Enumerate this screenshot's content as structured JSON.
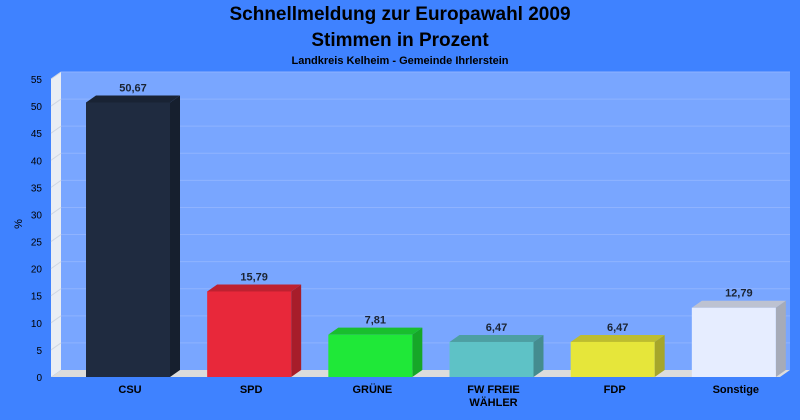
{
  "chart_data": {
    "type": "bar",
    "title": "Schnellmeldung zur Europawahl 2009",
    "subtitle": "Stimmen in Prozent",
    "subsubtitle": "Landkreis Kelheim - Gemeinde Ihrlerstein",
    "ylabel": "%",
    "ylim": [
      0,
      55
    ],
    "yticks": [
      0,
      5,
      10,
      15,
      20,
      25,
      30,
      35,
      40,
      45,
      50,
      55
    ],
    "grid": true,
    "categories": [
      [
        "CSU"
      ],
      [
        "SPD"
      ],
      [
        "GRÜNE"
      ],
      [
        "FW FREIE",
        "WÄHLER"
      ],
      [
        "FDP"
      ],
      [
        "Sonstige"
      ]
    ],
    "values": [
      50.67,
      15.79,
      7.81,
      6.47,
      6.47,
      12.79
    ],
    "value_labels": [
      "50,67",
      "15,79",
      "7,81",
      "6,47",
      "6,47",
      "12,79"
    ],
    "colors": [
      "#1f2b40",
      "#e8283a",
      "#1fe838",
      "#5ec2c6",
      "#e6e63a",
      "#e6edff"
    ]
  }
}
